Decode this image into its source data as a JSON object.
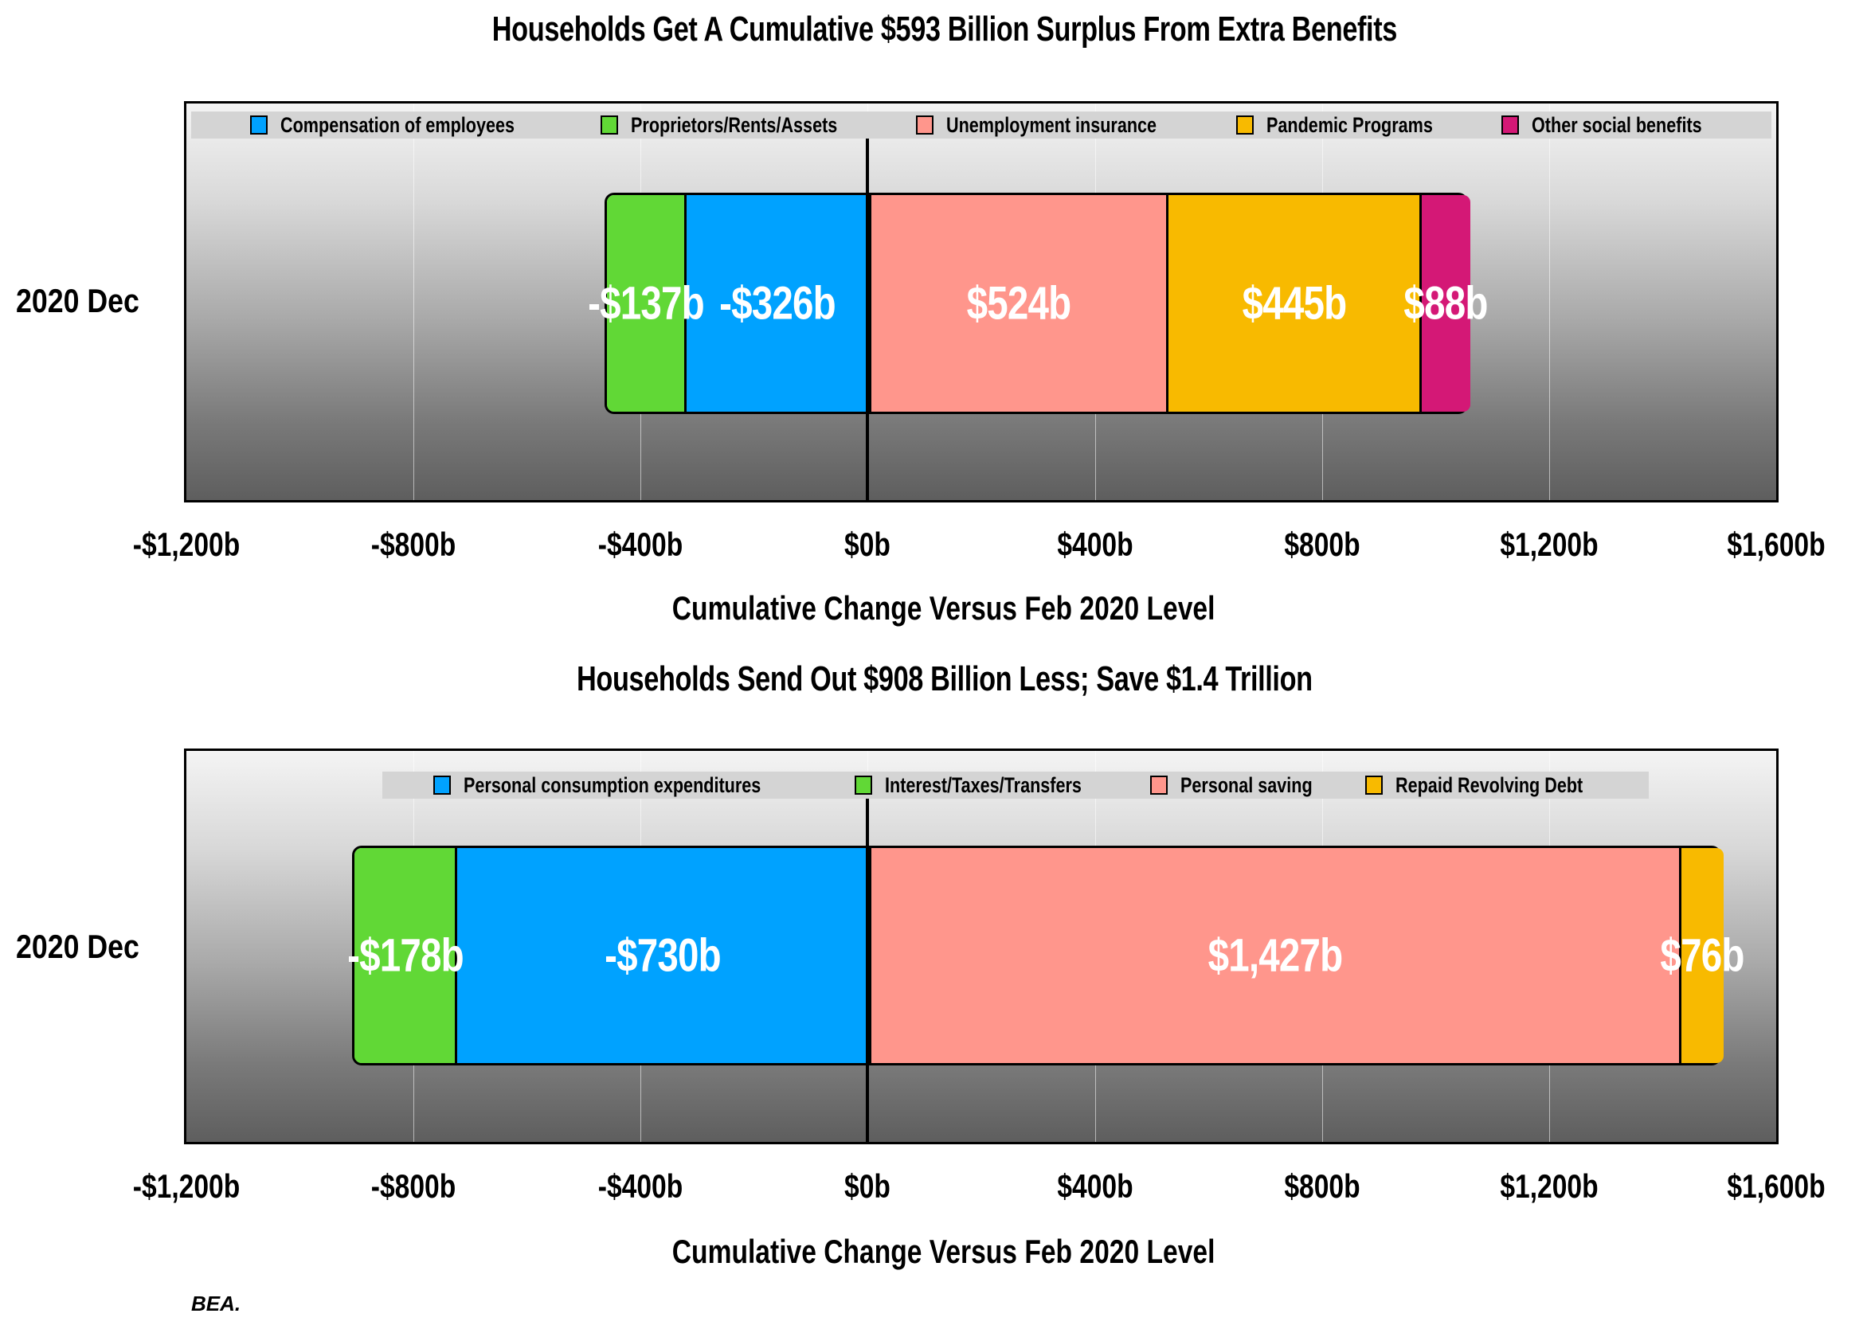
{
  "chart_data": [
    {
      "type": "bar",
      "orientation": "horizontal",
      "stacked": true,
      "title": "Households Get A Cumulative $593 Billion Surplus From Extra Benefits",
      "xlabel": "Cumulative Change Versus Feb 2020 Level",
      "ylabel": "",
      "categories": [
        "2020 Dec"
      ],
      "xlim": [
        -1200,
        1600
      ],
      "xticks": [
        -1200,
        -800,
        -400,
        0,
        400,
        800,
        1200,
        1600
      ],
      "xtick_labels": [
        "-$1,200b",
        "-$800b",
        "-$400b",
        "$0b",
        "$400b",
        "$800b",
        "$1,200b",
        "$1,600b"
      ],
      "grid": true,
      "legend_position": "top",
      "series": [
        {
          "name": "Compensation of employees",
          "values": [
            -326
          ],
          "color": "#00a2ff",
          "label": "-$326b"
        },
        {
          "name": "Proprietors/Rents/Assets",
          "values": [
            -137
          ],
          "color": "#61d836",
          "label": "-$137b"
        },
        {
          "name": "Unemployment insurance",
          "values": [
            524
          ],
          "color": "#ff968c",
          "label": "$524b"
        },
        {
          "name": "Pandemic Programs",
          "values": [
            445
          ],
          "color": "#f8ba00",
          "label": "$445b"
        },
        {
          "name": "Other social benefits",
          "values": [
            88
          ],
          "color": "#d41876",
          "label": "$88b"
        }
      ]
    },
    {
      "type": "bar",
      "orientation": "horizontal",
      "stacked": true,
      "title": "Households Send Out $908 Billion Less; Save $1.4 Trillion",
      "xlabel": "Cumulative Change Versus Feb 2020 Level",
      "ylabel": "",
      "categories": [
        "2020 Dec"
      ],
      "xlim": [
        -1200,
        1600
      ],
      "xticks": [
        -1200,
        -800,
        -400,
        0,
        400,
        800,
        1200,
        1600
      ],
      "xtick_labels": [
        "-$1,200b",
        "-$800b",
        "-$400b",
        "$0b",
        "$400b",
        "$800b",
        "$1,200b",
        "$1,600b"
      ],
      "grid": true,
      "legend_position": "top",
      "series": [
        {
          "name": "Personal consumption expenditures",
          "values": [
            -730
          ],
          "color": "#00a2ff",
          "label": "-$730b"
        },
        {
          "name": "Interest/Taxes/Transfers",
          "values": [
            -178
          ],
          "color": "#61d836",
          "label": "-$178b"
        },
        {
          "name": "Personal saving",
          "values": [
            1427
          ],
          "color": "#ff968c",
          "label": "$1,427b"
        },
        {
          "name": "Repaid Revolving Debt",
          "values": [
            76
          ],
          "color": "#f8ba00",
          "label": "$76b"
        }
      ]
    }
  ],
  "source": "BEA."
}
